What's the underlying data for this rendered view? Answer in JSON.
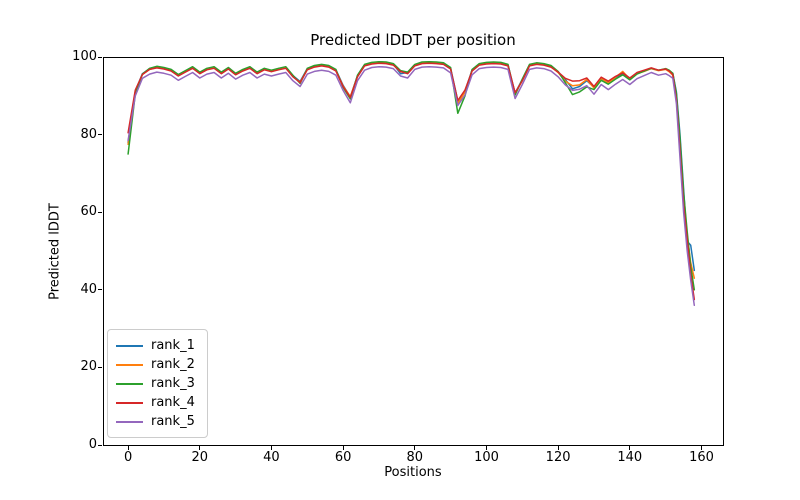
{
  "figure": {
    "title": "Predicted lDDT per position",
    "xlabel": "Positions",
    "ylabel": "Predicted lDDT",
    "background_color": "#ffffff",
    "spine_color": "#000000"
  },
  "legend": {
    "position": "lower left",
    "items": [
      {
        "label": "rank_1",
        "color": "#1f77b4"
      },
      {
        "label": "rank_2",
        "color": "#ff7f0e"
      },
      {
        "label": "rank_3",
        "color": "#2ca02c"
      },
      {
        "label": "rank_4",
        "color": "#d62728"
      },
      {
        "label": "rank_5",
        "color": "#9467bd"
      }
    ]
  },
  "chart_data": {
    "type": "line",
    "title": "Predicted lDDT per position",
    "xlabel": "Positions",
    "ylabel": "Predicted lDDT",
    "xlim": [
      -7,
      166
    ],
    "ylim": [
      0,
      100
    ],
    "grid": false,
    "legend_position": "lower left",
    "xticks": [
      0,
      20,
      40,
      60,
      80,
      100,
      120,
      140,
      160
    ],
    "yticks": [
      0,
      20,
      40,
      60,
      80,
      100
    ],
    "x": [
      0,
      2,
      4,
      6,
      8,
      10,
      12,
      14,
      16,
      18,
      20,
      22,
      24,
      26,
      28,
      30,
      32,
      34,
      36,
      38,
      40,
      42,
      44,
      46,
      48,
      50,
      52,
      54,
      56,
      58,
      60,
      62,
      64,
      66,
      68,
      70,
      72,
      74,
      76,
      78,
      80,
      82,
      84,
      86,
      88,
      90,
      92,
      94,
      96,
      98,
      100,
      102,
      104,
      106,
      108,
      110,
      112,
      114,
      116,
      118,
      120,
      122,
      124,
      126,
      128,
      130,
      132,
      134,
      136,
      138,
      140,
      142,
      144,
      146,
      148,
      150,
      151,
      152,
      153,
      154,
      155,
      156,
      157,
      158
    ],
    "series": [
      {
        "name": "rank_1",
        "color": "#1f77b4",
        "values": [
          78,
          91.2,
          95.7,
          97,
          97.5,
          97.2,
          96.7,
          95.4,
          96.4,
          97.4,
          96,
          97,
          97.4,
          96,
          97.2,
          95.7,
          96.7,
          97.4,
          96,
          97,
          96.5,
          97,
          97.4,
          95.2,
          93.7,
          97,
          97.7,
          98,
          97.7,
          96.7,
          92.7,
          89.7,
          95.2,
          98,
          98.5,
          98.7,
          98.6,
          98.2,
          95.7,
          96,
          98,
          98.6,
          98.7,
          98.6,
          98.4,
          97.2,
          88.7,
          91.2,
          96.7,
          98.2,
          98.5,
          98.6,
          98.5,
          98,
          90.7,
          94.2,
          98,
          98.4,
          98.2,
          97.7,
          96.2,
          94.2,
          91.8,
          92.4,
          93.9,
          92.2,
          94.4,
          93.5,
          94.7,
          95.8,
          94.4,
          95.8,
          96.4,
          97.1,
          96.6,
          96.9,
          96.3,
          95.8,
          91,
          80,
          66,
          52.5,
          51.5,
          45
        ]
      },
      {
        "name": "rank_2",
        "color": "#ff7f0e",
        "values": [
          77.5,
          91,
          95.5,
          96.8,
          97.3,
          97,
          96.5,
          95.2,
          96.2,
          97.2,
          95.8,
          96.8,
          97.2,
          95.8,
          97,
          95.5,
          96.5,
          97.2,
          95.8,
          96.8,
          96.3,
          96.8,
          97.2,
          95,
          93.5,
          96.8,
          97.5,
          97.8,
          97.5,
          96.5,
          92.5,
          89.8,
          95,
          97.8,
          98.3,
          98.5,
          98.4,
          98,
          96.2,
          95.8,
          97.8,
          98.4,
          98.5,
          98.4,
          98.2,
          97,
          88,
          91,
          96.5,
          98,
          98.3,
          98.4,
          98.3,
          97.8,
          90.5,
          94,
          97.8,
          98.2,
          98,
          97.5,
          96,
          93.8,
          92.6,
          92.8,
          94.2,
          92,
          94.5,
          93.3,
          94.8,
          96.3,
          94.3,
          95.7,
          96.3,
          97,
          96.5,
          96.8,
          96.2,
          95.3,
          89.5,
          77,
          63,
          54,
          47,
          43
        ]
      },
      {
        "name": "rank_3",
        "color": "#2ca02c",
        "values": [
          75,
          90.5,
          95.6,
          97.1,
          97.6,
          97.3,
          96.8,
          95.5,
          96.5,
          97.5,
          96.1,
          97.1,
          97.5,
          96.1,
          97.3,
          95.8,
          96.8,
          97.5,
          96.1,
          97.1,
          96.6,
          97.1,
          97.5,
          95.3,
          93.2,
          97.1,
          97.8,
          98.1,
          97.8,
          96.8,
          92.2,
          89.2,
          95.3,
          98.1,
          98.6,
          98.8,
          98.7,
          98.3,
          96.5,
          96.1,
          98.1,
          98.7,
          98.8,
          98.7,
          98.5,
          97.3,
          85.5,
          90,
          96.8,
          98.3,
          98.6,
          98.7,
          98.6,
          98.1,
          90.2,
          94.3,
          98.1,
          98.5,
          98.3,
          97.8,
          96.3,
          93.4,
          90.3,
          91,
          92.3,
          91.6,
          94,
          93,
          94.3,
          95.4,
          94.1,
          95.6,
          96.4,
          97.1,
          96.6,
          97,
          96.6,
          95.8,
          90.5,
          79,
          65,
          55,
          46,
          40
        ]
      },
      {
        "name": "rank_4",
        "color": "#d62728",
        "values": [
          80.5,
          91.5,
          95.5,
          96.8,
          97.2,
          96.9,
          96.4,
          95.1,
          96.1,
          97.1,
          95.7,
          96.7,
          97.1,
          95.7,
          96.9,
          95.4,
          96.4,
          97.1,
          95.7,
          96.7,
          96.2,
          96.7,
          97.1,
          94.9,
          93.4,
          96.7,
          97.4,
          97.7,
          97.4,
          96.4,
          92.4,
          89.6,
          94.9,
          97.7,
          98.2,
          98.4,
          98.3,
          97.9,
          96.3,
          95.7,
          97.7,
          98.3,
          98.4,
          98.3,
          98.1,
          96.9,
          88.8,
          91.5,
          96.4,
          97.9,
          98.2,
          98.3,
          98.2,
          97.7,
          90.8,
          93.9,
          97.7,
          98.1,
          97.9,
          97.4,
          96.1,
          94.5,
          93.8,
          93.9,
          94.6,
          92.4,
          94.8,
          93.8,
          95,
          95.9,
          94.6,
          96,
          96.6,
          97.2,
          96.6,
          96.9,
          96.4,
          95.5,
          89,
          76,
          62,
          53,
          44,
          37.5
        ]
      },
      {
        "name": "rank_5",
        "color": "#9467bd",
        "values": [
          78.5,
          90,
          94.5,
          95.6,
          96.1,
          95.8,
          95.3,
          94,
          95,
          96,
          94.6,
          95.6,
          96,
          94.6,
          95.8,
          94.3,
          95.3,
          96,
          94.6,
          95.6,
          95.1,
          95.6,
          96,
          93.9,
          92.4,
          95.6,
          96.3,
          96.6,
          96.3,
          95.3,
          91.4,
          88.2,
          93.9,
          96.6,
          97.3,
          97.5,
          97.4,
          97,
          95.1,
          94.6,
          96.8,
          97.4,
          97.5,
          97.4,
          97.2,
          95.9,
          87.5,
          90.2,
          95.4,
          97,
          97.3,
          97.4,
          97.3,
          96.8,
          89.3,
          92.9,
          96.8,
          97.2,
          97,
          96.4,
          94.9,
          92.8,
          91.4,
          91.7,
          92.6,
          90.4,
          92.9,
          91.6,
          93,
          94.2,
          92.9,
          94.4,
          95.2,
          96,
          95.3,
          95.7,
          95.2,
          94.5,
          88,
          74,
          60,
          50,
          42.5,
          36
        ]
      }
    ]
  }
}
